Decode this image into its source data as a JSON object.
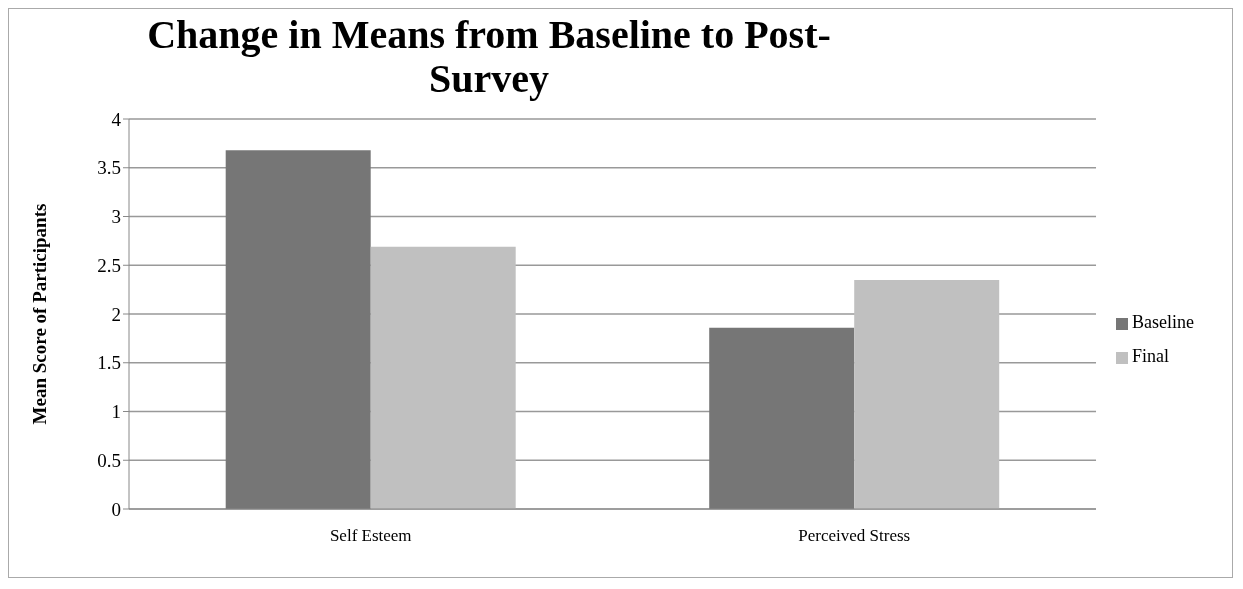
{
  "chart_data": {
    "type": "bar",
    "title": "Change in Means from Baseline to Post-Survey",
    "ylabel": "Mean Score of Participants",
    "categories": [
      "Self Esteem",
      "Perceived Stress"
    ],
    "series": [
      {
        "name": "Baseline",
        "color": "#767676",
        "values": [
          3.68,
          1.86
        ]
      },
      {
        "name": "Final",
        "color": "#c0c0c0",
        "values": [
          2.69,
          2.35
        ]
      }
    ],
    "ylim": [
      0,
      4
    ],
    "yticks": [
      0,
      0.5,
      1,
      1.5,
      2,
      2.5,
      3,
      3.5,
      4
    ],
    "grid": "y",
    "legend": "right"
  }
}
